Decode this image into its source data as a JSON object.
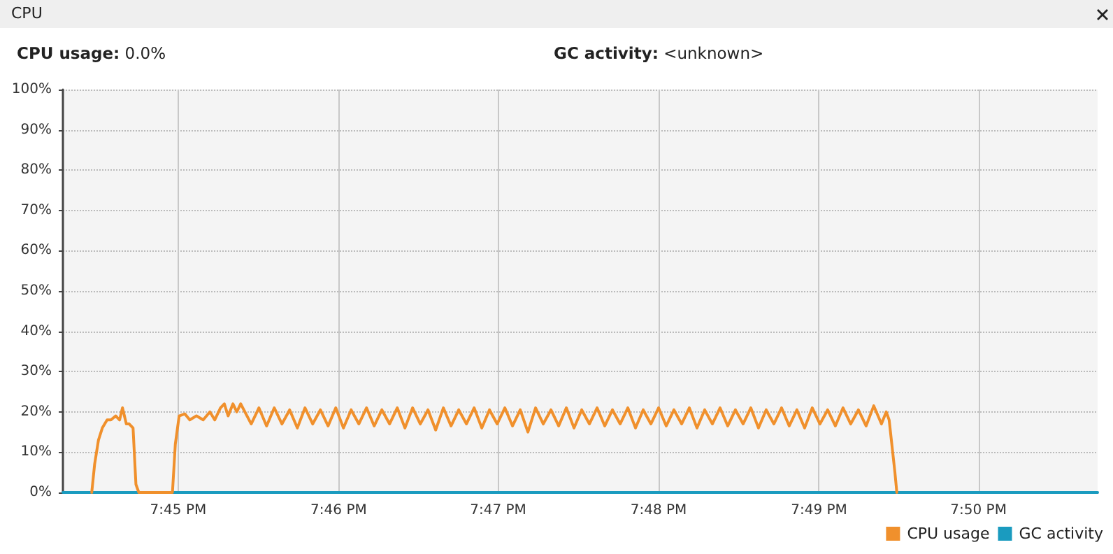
{
  "chart_data": {
    "type": "line",
    "title": "CPU",
    "annotations": [
      "CPU usage: 0.0%",
      "GC activity: <unknown>"
    ],
    "xlim": [
      19.738,
      19.8457
    ],
    "xticks": [
      {
        "value": 19.75,
        "label": "7:45 PM"
      },
      {
        "value": 19.7667,
        "label": "7:46 PM"
      },
      {
        "value": 19.7833,
        "label": "7:47 PM"
      },
      {
        "value": 19.8,
        "label": "7:48 PM"
      },
      {
        "value": 19.8167,
        "label": "7:49 PM"
      },
      {
        "value": 19.8333,
        "label": "7:50 PM"
      }
    ],
    "ylim": [
      0,
      100
    ],
    "yticks": [
      {
        "value": 0,
        "label": "0%"
      },
      {
        "value": 10,
        "label": "10%"
      },
      {
        "value": 20,
        "label": "20%"
      },
      {
        "value": 30,
        "label": "30%"
      },
      {
        "value": 40,
        "label": "40%"
      },
      {
        "value": 50,
        "label": "50%"
      },
      {
        "value": 60,
        "label": "60%"
      },
      {
        "value": 70,
        "label": "70%"
      },
      {
        "value": 80,
        "label": "80%"
      },
      {
        "value": 90,
        "label": "90%"
      },
      {
        "value": 100,
        "label": "100%"
      }
    ],
    "grid": true,
    "legend": "bottom right",
    "marker": "none",
    "line_style": "solid",
    "series": [
      {
        "name": "CPU usage",
        "color": "#f0902c",
        "x": [
          19.741,
          19.7413,
          19.7417,
          19.7421,
          19.7426,
          19.743,
          19.7435,
          19.7439,
          19.7442,
          19.7446,
          19.7449,
          19.7453,
          19.7456,
          19.7459,
          19.7494,
          19.7497,
          19.7501,
          19.7507,
          19.7512,
          19.7519,
          19.7526,
          19.7533,
          19.7538,
          19.7544,
          19.7548,
          19.7552,
          19.7557,
          19.7561,
          19.7565,
          19.7576,
          19.7584,
          19.7592,
          19.76,
          19.7608,
          19.7616,
          19.7624,
          19.7632,
          19.764,
          19.7648,
          19.7656,
          19.7664,
          19.7672,
          19.768,
          19.7688,
          19.7696,
          19.7704,
          19.7712,
          19.772,
          19.7728,
          19.7736,
          19.7744,
          19.7752,
          19.776,
          19.7768,
          19.7776,
          19.7784,
          19.7792,
          19.78,
          19.7808,
          19.7816,
          19.7824,
          19.7832,
          19.784,
          19.7848,
          19.7856,
          19.7864,
          19.7872,
          19.788,
          19.7888,
          19.7896,
          19.7904,
          19.7912,
          19.792,
          19.7928,
          19.7936,
          19.7944,
          19.7952,
          19.796,
          19.7968,
          19.7976,
          19.7984,
          19.7992,
          19.8,
          19.8008,
          19.8016,
          19.8024,
          19.8032,
          19.804,
          19.8048,
          19.8056,
          19.8064,
          19.8072,
          19.808,
          19.8088,
          19.8096,
          19.8104,
          19.8112,
          19.812,
          19.8128,
          19.8136,
          19.8144,
          19.8152,
          19.816,
          19.8168,
          19.8176,
          19.8184,
          19.8192,
          19.82,
          19.8208,
          19.8216,
          19.8224,
          19.8232,
          19.8237,
          19.824,
          19.8246,
          19.8248
        ],
        "values": [
          0,
          7,
          13,
          16,
          18,
          18,
          19,
          18,
          21,
          17,
          17,
          16,
          2,
          0,
          0,
          12,
          19,
          19.5,
          18,
          19,
          18,
          20,
          18,
          21,
          22,
          19,
          22,
          20,
          22,
          17,
          21,
          16.5,
          21,
          17,
          20.5,
          16,
          21,
          17,
          20.5,
          16.5,
          21,
          16,
          20.5,
          17,
          21,
          16.5,
          20.5,
          17,
          21,
          16,
          21,
          17,
          20.5,
          15.5,
          21,
          16.5,
          20.5,
          17,
          21,
          16,
          20.5,
          17,
          21,
          16.5,
          20.5,
          15,
          21,
          17,
          20.5,
          16.5,
          21,
          16,
          20.5,
          17,
          21,
          16.5,
          20.5,
          17,
          21,
          16,
          20.5,
          17,
          21,
          16.5,
          20.5,
          17,
          21,
          16,
          20.5,
          17,
          21,
          16.5,
          20.5,
          17,
          21,
          16,
          20.5,
          17,
          21,
          16.5,
          20.5,
          16,
          21,
          17,
          20.5,
          16.5,
          21,
          17,
          20.5,
          16.5,
          21.5,
          17,
          20,
          18,
          5,
          0
        ]
      },
      {
        "name": "GC activity",
        "color": "#1a9bbf",
        "x": [
          19.738,
          19.8457
        ],
        "values": [
          0,
          0
        ]
      }
    ]
  }
}
